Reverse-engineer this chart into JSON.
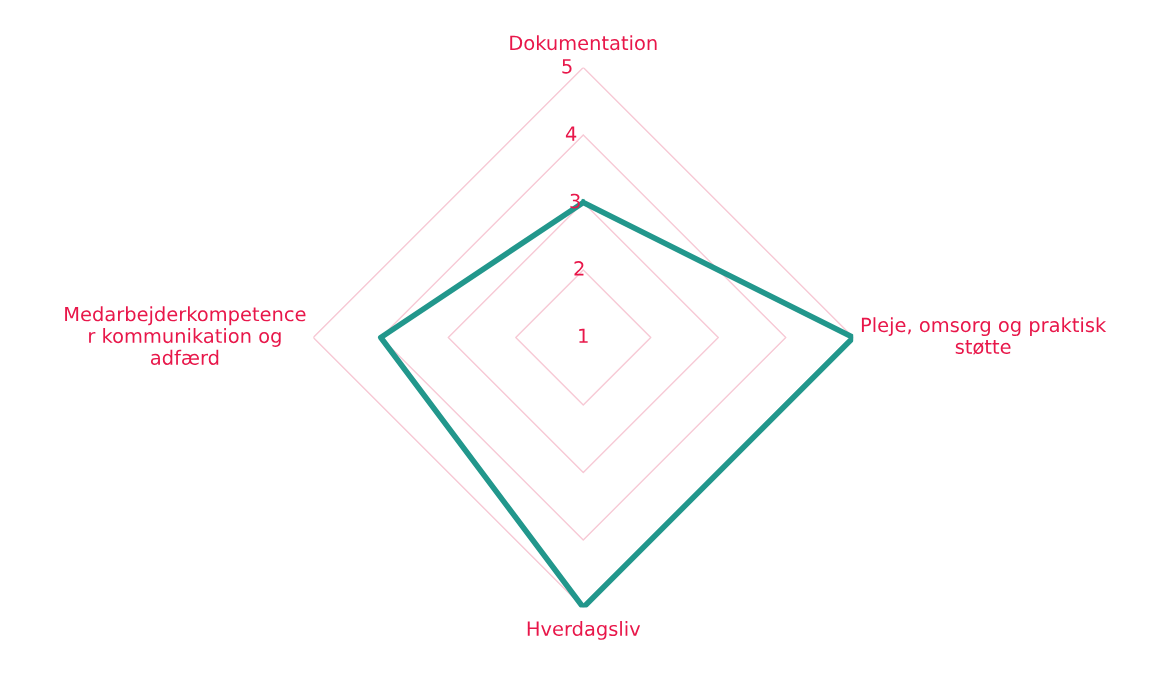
{
  "chart_data": {
    "type": "radar",
    "categories": [
      "Dokumentation",
      "Pleje, omsorg og praktisk\nstøtte",
      "Hverdagsliv",
      "Medarbejderkompetence\nr kommunikation og\nadfærd"
    ],
    "series": [
      {
        "color": "#22978c",
        "values": [
          3,
          5,
          5,
          4
        ]
      }
    ],
    "ylim": [
      1,
      5
    ],
    "yticks": [
      1,
      2,
      3,
      4,
      5
    ],
    "grid": true
  }
}
